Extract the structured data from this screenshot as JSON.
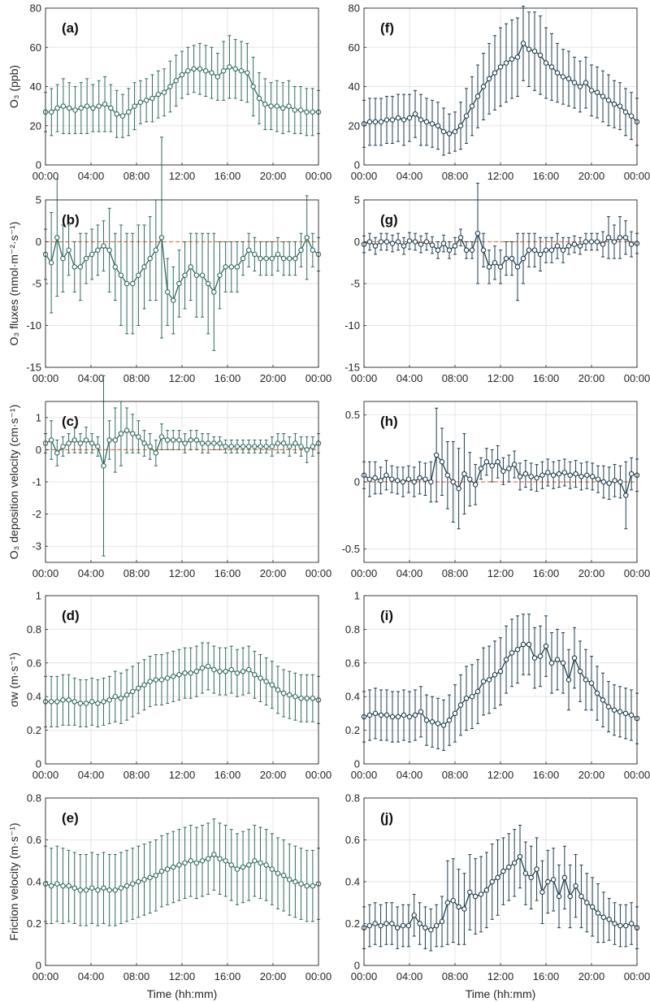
{
  "chart_data": [
    {
      "id": "a",
      "panel_label": "(a)",
      "type": "line",
      "ylabel": "O₃ (ppb)",
      "xlabel": "",
      "ylim": [
        0,
        80
      ],
      "yticks": [
        0,
        20,
        40,
        60,
        80
      ],
      "zero_line": false,
      "color": "#2f6b5f",
      "mean": [
        27,
        27,
        29,
        30,
        29,
        28,
        29,
        30,
        29,
        30,
        31,
        29,
        26,
        25,
        27,
        30,
        32,
        33,
        34,
        36,
        37,
        40,
        43,
        46,
        48,
        49,
        49,
        48,
        47,
        45,
        48,
        50,
        49,
        48,
        47,
        40,
        34,
        31,
        30,
        30,
        29,
        30,
        28,
        28,
        27,
        27,
        27
      ],
      "sd": [
        10,
        12,
        12,
        14,
        13,
        12,
        13,
        14,
        12,
        13,
        14,
        12,
        12,
        11,
        12,
        12,
        11,
        11,
        12,
        12,
        12,
        13,
        13,
        12,
        12,
        12,
        13,
        13,
        13,
        12,
        15,
        16,
        15,
        15,
        15,
        15,
        13,
        13,
        12,
        13,
        13,
        13,
        12,
        12,
        12,
        12,
        11
      ]
    },
    {
      "id": "b",
      "panel_label": "(b)",
      "type": "line",
      "ylabel": "O₃ fluxes (nmol·m⁻²·s⁻¹)",
      "xlabel": "",
      "ylim": [
        -15,
        5
      ],
      "yticks": [
        -15,
        -10,
        -5,
        0,
        5
      ],
      "zero_line": true,
      "color": "#2f6b5f",
      "mean": [
        -1.5,
        -2.5,
        0.5,
        -2,
        -1,
        -3,
        -3,
        -2,
        -1.5,
        -1,
        -0.5,
        -1,
        -3,
        -4,
        -5,
        -5,
        -4,
        -3,
        -2,
        -1,
        0.5,
        -6,
        -7,
        -5,
        -4,
        -3,
        -4,
        -4,
        -5,
        -6,
        -4,
        -3,
        -3,
        -3,
        -2,
        -1,
        -1.5,
        -2,
        -2,
        -2,
        -1.5,
        -2,
        -2,
        -2,
        -1,
        0.5,
        -1,
        -1.5
      ],
      "sd": [
        3,
        6,
        7,
        4,
        3,
        3,
        4,
        3,
        3,
        3,
        3,
        5,
        4,
        6,
        6,
        6,
        6,
        5,
        5,
        6,
        12,
        4,
        4,
        4,
        4,
        4,
        5,
        5,
        6,
        7,
        4,
        3,
        3,
        3,
        2,
        2,
        2,
        2,
        2,
        2,
        2,
        2,
        2,
        2,
        2,
        5,
        2,
        2
      ]
    },
    {
      "id": "c",
      "panel_label": "(c)",
      "type": "line",
      "ylabel": "O₃ deposition velocity (cm·s⁻¹)",
      "xlabel": "",
      "ylim": [
        -3.5,
        1.5
      ],
      "yticks": [
        -3,
        -2,
        -1,
        0,
        1
      ],
      "zero_line": true,
      "color": "#2f6b5f",
      "mean": [
        0.2,
        0.3,
        -0.1,
        0.1,
        0.2,
        0.3,
        0.2,
        0.3,
        0.2,
        0.1,
        -0.5,
        0.3,
        0.3,
        0.5,
        0.6,
        0.5,
        0.4,
        0.2,
        0.1,
        -0.1,
        0.4,
        0.3,
        0.3,
        0.3,
        0.2,
        0.3,
        0.3,
        0.2,
        0.2,
        0.2,
        0.2,
        0.1,
        0.1,
        0.1,
        0.1,
        0.1,
        0.1,
        0.1,
        0.1,
        0.1,
        0.2,
        0.2,
        0.1,
        0.2,
        0.1,
        0.0,
        0.1,
        0.2
      ],
      "sd": [
        0.3,
        0.6,
        0.4,
        0.3,
        0.3,
        0.4,
        0.3,
        0.4,
        0.3,
        0.3,
        2.8,
        0.6,
        1.0,
        1.0,
        0.7,
        0.6,
        0.5,
        0.4,
        0.4,
        0.4,
        0.4,
        0.3,
        0.3,
        0.3,
        0.3,
        0.3,
        0.3,
        0.3,
        0.3,
        0.2,
        0.2,
        0.2,
        0.2,
        0.2,
        0.2,
        0.2,
        0.2,
        0.2,
        0.2,
        0.3,
        0.3,
        0.3,
        0.3,
        0.3,
        0.3,
        0.4,
        0.3,
        0.3
      ]
    },
    {
      "id": "d",
      "panel_label": "(d)",
      "type": "line",
      "ylabel": "σw (m·s⁻¹)",
      "xlabel": "",
      "ylim": [
        0,
        1
      ],
      "yticks": [
        0,
        0.2,
        0.4,
        0.6,
        0.8,
        1
      ],
      "zero_line": false,
      "color": "#2f6b5f",
      "mean": [
        0.37,
        0.37,
        0.37,
        0.38,
        0.38,
        0.37,
        0.36,
        0.36,
        0.37,
        0.36,
        0.37,
        0.38,
        0.4,
        0.39,
        0.41,
        0.43,
        0.45,
        0.47,
        0.49,
        0.5,
        0.5,
        0.51,
        0.52,
        0.53,
        0.54,
        0.54,
        0.55,
        0.57,
        0.58,
        0.56,
        0.55,
        0.55,
        0.56,
        0.54,
        0.55,
        0.56,
        0.53,
        0.51,
        0.49,
        0.47,
        0.44,
        0.42,
        0.41,
        0.4,
        0.39,
        0.39,
        0.39,
        0.38
      ],
      "sd": [
        0.15,
        0.15,
        0.15,
        0.15,
        0.15,
        0.14,
        0.14,
        0.14,
        0.14,
        0.14,
        0.14,
        0.14,
        0.15,
        0.15,
        0.15,
        0.15,
        0.15,
        0.15,
        0.15,
        0.15,
        0.15,
        0.15,
        0.15,
        0.15,
        0.15,
        0.15,
        0.15,
        0.15,
        0.14,
        0.14,
        0.14,
        0.14,
        0.14,
        0.14,
        0.14,
        0.14,
        0.14,
        0.14,
        0.14,
        0.14,
        0.14,
        0.14,
        0.14,
        0.14,
        0.14,
        0.14,
        0.14,
        0.14
      ]
    },
    {
      "id": "e",
      "panel_label": "(e)",
      "type": "line",
      "ylabel": "Friction velocity (m·s⁻¹)",
      "xlabel": "Time (hh:mm)",
      "ylim": [
        0,
        0.8
      ],
      "yticks": [
        0,
        0.2,
        0.4,
        0.6,
        0.8
      ],
      "zero_line": false,
      "color": "#2f6b5f",
      "mean": [
        0.39,
        0.38,
        0.39,
        0.38,
        0.38,
        0.37,
        0.36,
        0.36,
        0.37,
        0.36,
        0.37,
        0.36,
        0.36,
        0.37,
        0.38,
        0.39,
        0.4,
        0.41,
        0.42,
        0.43,
        0.45,
        0.46,
        0.47,
        0.48,
        0.49,
        0.5,
        0.49,
        0.5,
        0.51,
        0.53,
        0.51,
        0.5,
        0.48,
        0.46,
        0.47,
        0.48,
        0.5,
        0.49,
        0.48,
        0.46,
        0.44,
        0.43,
        0.41,
        0.4,
        0.39,
        0.38,
        0.38,
        0.39
      ],
      "sd": [
        0.18,
        0.18,
        0.18,
        0.18,
        0.17,
        0.17,
        0.17,
        0.17,
        0.17,
        0.17,
        0.17,
        0.17,
        0.17,
        0.17,
        0.17,
        0.17,
        0.17,
        0.17,
        0.17,
        0.17,
        0.17,
        0.17,
        0.17,
        0.17,
        0.17,
        0.17,
        0.17,
        0.17,
        0.17,
        0.17,
        0.17,
        0.17,
        0.17,
        0.17,
        0.17,
        0.17,
        0.17,
        0.17,
        0.17,
        0.17,
        0.17,
        0.17,
        0.17,
        0.17,
        0.17,
        0.17,
        0.17,
        0.17
      ]
    },
    {
      "id": "f",
      "panel_label": "(f)",
      "type": "line",
      "ylabel": "",
      "xlabel": "",
      "ylim": [
        0,
        80
      ],
      "yticks": [
        0,
        20,
        40,
        60,
        80
      ],
      "zero_line": false,
      "color": "#1e3e4f",
      "mean": [
        21,
        22,
        22,
        22,
        23,
        23,
        24,
        23,
        24,
        26,
        23,
        22,
        21,
        20,
        17,
        16,
        17,
        20,
        25,
        30,
        35,
        40,
        44,
        47,
        50,
        52,
        54,
        55,
        62,
        59,
        58,
        56,
        52,
        50,
        47,
        45,
        44,
        42,
        40,
        42,
        38,
        37,
        35,
        33,
        31,
        30,
        27,
        25,
        22
      ],
      "sd": [
        12,
        12,
        12,
        12,
        12,
        12,
        12,
        13,
        12,
        12,
        13,
        12,
        12,
        12,
        12,
        10,
        10,
        12,
        14,
        15,
        16,
        17,
        18,
        19,
        20,
        20,
        20,
        20,
        19,
        19,
        20,
        20,
        18,
        17,
        15,
        14,
        14,
        13,
        13,
        13,
        13,
        13,
        13,
        13,
        12,
        12,
        12,
        12,
        12
      ]
    },
    {
      "id": "g",
      "panel_label": "(g)",
      "type": "line",
      "ylabel": "",
      "xlabel": "",
      "ylim": [
        -15,
        5
      ],
      "yticks": [
        -15,
        -10,
        -5,
        0,
        5
      ],
      "zero_line": true,
      "color": "#1e3e4f",
      "mean": [
        -0.3,
        0,
        -0.5,
        0,
        0,
        -0.2,
        0,
        -0.5,
        0.1,
        0,
        -0.3,
        0,
        -0.4,
        -1,
        -0.2,
        -1,
        -0.5,
        0.5,
        -1,
        -1,
        1,
        -1,
        -3,
        -2.5,
        -3,
        -2,
        -2,
        -3,
        -2,
        -1,
        -1,
        -1.5,
        -1,
        -1,
        -0.5,
        -1,
        -0.5,
        -0.3,
        -0.5,
        0,
        0,
        0,
        -0.3,
        0.5,
        0,
        0.5,
        0.5,
        -0.3,
        -0.2
      ],
      "sd": [
        1,
        1,
        1,
        1,
        1,
        1,
        1,
        1,
        1,
        1,
        1,
        1,
        1,
        1,
        1,
        1,
        1,
        1,
        1,
        1,
        6,
        2,
        2,
        2,
        2,
        2,
        2,
        4,
        3,
        2,
        2,
        2,
        1.5,
        1.5,
        1.5,
        1.5,
        1,
        1,
        1,
        1,
        1,
        1,
        1.5,
        2.5,
        2,
        2.5,
        2,
        1.5,
        1.2
      ]
    },
    {
      "id": "h",
      "panel_label": "(h)",
      "type": "line",
      "ylabel": "",
      "xlabel": "",
      "ylim": [
        -0.6,
        0.6
      ],
      "yticks": [
        -0.5,
        0,
        0.5
      ],
      "zero_line": true,
      "color": "#1e3e4f",
      "mean": [
        0.05,
        0.02,
        0.03,
        0.01,
        0.05,
        0.02,
        0.01,
        0.0,
        0.02,
        0.0,
        0.03,
        0.02,
        0.0,
        0.2,
        0.15,
        0.05,
        0.0,
        -0.05,
        0.06,
        0.02,
        -0.02,
        0.1,
        0.15,
        0.12,
        0.15,
        0.08,
        0.1,
        0.13,
        0.04,
        0.06,
        0.04,
        0.03,
        0.05,
        0.07,
        0.05,
        0.06,
        0.07,
        0.05,
        0.06,
        0.04,
        0.05,
        0.04,
        0.02,
        0.0,
        -0.01,
        0.01,
        0.0,
        -0.1,
        0.06,
        0.05
      ],
      "sd": [
        0.1,
        0.13,
        0.12,
        0.1,
        0.11,
        0.1,
        0.1,
        0.11,
        0.1,
        0.11,
        0.12,
        0.12,
        0.15,
        0.35,
        0.25,
        0.25,
        0.3,
        0.3,
        0.3,
        0.2,
        0.15,
        0.08,
        0.1,
        0.12,
        0.12,
        0.1,
        0.1,
        0.1,
        0.1,
        0.1,
        0.1,
        0.1,
        0.1,
        0.1,
        0.1,
        0.1,
        0.1,
        0.1,
        0.1,
        0.1,
        0.1,
        0.1,
        0.1,
        0.12,
        0.12,
        0.12,
        0.12,
        0.25,
        0.12,
        0.12
      ]
    },
    {
      "id": "i",
      "panel_label": "(i)",
      "type": "line",
      "ylabel": "",
      "xlabel": "",
      "ylim": [
        0,
        1
      ],
      "yticks": [
        0,
        0.2,
        0.4,
        0.6,
        0.8,
        1
      ],
      "zero_line": false,
      "color": "#1e3e4f",
      "mean": [
        0.28,
        0.29,
        0.3,
        0.29,
        0.29,
        0.28,
        0.28,
        0.29,
        0.28,
        0.29,
        0.31,
        0.26,
        0.25,
        0.24,
        0.23,
        0.26,
        0.3,
        0.35,
        0.39,
        0.4,
        0.43,
        0.49,
        0.5,
        0.53,
        0.55,
        0.62,
        0.66,
        0.68,
        0.71,
        0.71,
        0.63,
        0.64,
        0.7,
        0.6,
        0.62,
        0.6,
        0.5,
        0.63,
        0.55,
        0.5,
        0.48,
        0.42,
        0.38,
        0.34,
        0.32,
        0.31,
        0.3,
        0.29,
        0.27
      ],
      "sd": [
        0.15,
        0.15,
        0.15,
        0.15,
        0.15,
        0.15,
        0.15,
        0.15,
        0.15,
        0.15,
        0.15,
        0.15,
        0.15,
        0.15,
        0.15,
        0.15,
        0.17,
        0.18,
        0.19,
        0.19,
        0.19,
        0.2,
        0.2,
        0.2,
        0.2,
        0.2,
        0.2,
        0.2,
        0.18,
        0.18,
        0.18,
        0.18,
        0.18,
        0.18,
        0.18,
        0.18,
        0.18,
        0.18,
        0.18,
        0.18,
        0.16,
        0.16,
        0.16,
        0.15,
        0.15,
        0.15,
        0.15,
        0.15,
        0.15
      ]
    },
    {
      "id": "j",
      "panel_label": "(j)",
      "type": "line",
      "ylabel": "",
      "xlabel": "Time (hh:mm)",
      "ylim": [
        0,
        0.8
      ],
      "yticks": [
        0,
        0.2,
        0.4,
        0.6,
        0.8
      ],
      "zero_line": false,
      "color": "#1e3e4f",
      "mean": [
        0.18,
        0.19,
        0.2,
        0.19,
        0.2,
        0.2,
        0.18,
        0.19,
        0.19,
        0.24,
        0.2,
        0.18,
        0.17,
        0.19,
        0.21,
        0.3,
        0.31,
        0.28,
        0.27,
        0.35,
        0.33,
        0.34,
        0.36,
        0.4,
        0.42,
        0.45,
        0.47,
        0.49,
        0.52,
        0.44,
        0.42,
        0.46,
        0.35,
        0.4,
        0.41,
        0.33,
        0.42,
        0.33,
        0.38,
        0.33,
        0.3,
        0.28,
        0.25,
        0.23,
        0.22,
        0.2,
        0.19,
        0.19,
        0.2,
        0.18
      ],
      "sd": [
        0.1,
        0.1,
        0.1,
        0.1,
        0.1,
        0.1,
        0.1,
        0.1,
        0.1,
        0.1,
        0.1,
        0.1,
        0.1,
        0.1,
        0.12,
        0.2,
        0.2,
        0.18,
        0.17,
        0.18,
        0.18,
        0.18,
        0.18,
        0.18,
        0.18,
        0.16,
        0.16,
        0.16,
        0.15,
        0.15,
        0.15,
        0.15,
        0.15,
        0.15,
        0.15,
        0.15,
        0.15,
        0.15,
        0.15,
        0.15,
        0.14,
        0.14,
        0.14,
        0.12,
        0.1,
        0.1,
        0.1,
        0.1,
        0.1,
        0.1
      ]
    }
  ],
  "x_tick_labels": [
    "00:00",
    "04:00",
    "08:00",
    "12:00",
    "16:00",
    "20:00",
    "00:00"
  ],
  "zero_line_color": "#e07a4f"
}
